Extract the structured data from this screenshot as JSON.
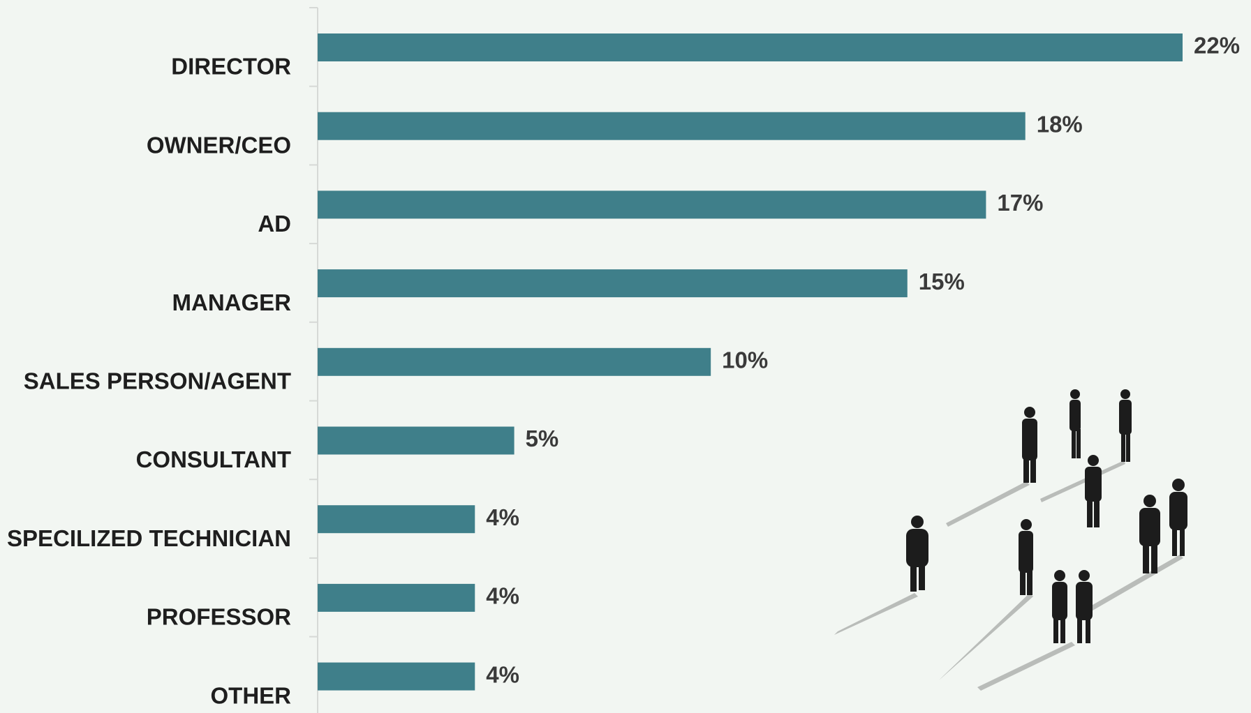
{
  "chart_data": {
    "type": "bar",
    "orientation": "horizontal",
    "categories": [
      "DIRECTOR",
      "OWNER/CEO",
      "AD",
      "MANAGER",
      "SALES PERSON/AGENT",
      "CONSULTANT",
      "SPECILIZED TECHNICIAN",
      "PROFESSOR",
      "OTHER"
    ],
    "values": [
      22,
      18,
      17,
      15,
      10,
      5,
      4,
      4,
      4
    ],
    "value_labels": [
      "22%",
      "18%",
      "17%",
      "15%",
      "10%",
      "5%",
      "4%",
      "4%",
      "4%"
    ],
    "color": "#3f7f8a"
  }
}
